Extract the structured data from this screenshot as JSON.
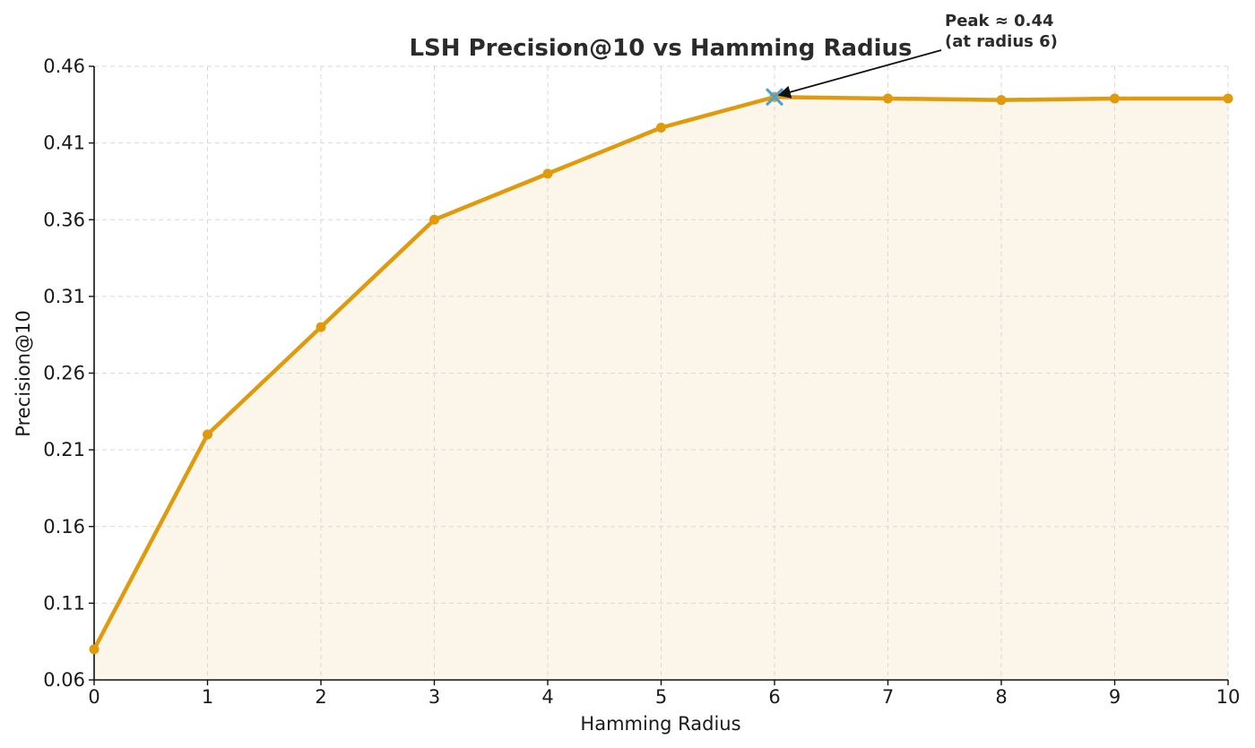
{
  "chart_data": {
    "type": "line",
    "title": "LSH Precision@10 vs Hamming Radius",
    "xlabel": "Hamming Radius",
    "ylabel": "Precision@10",
    "xlim": [
      0,
      10
    ],
    "ylim": [
      0.06,
      0.46
    ],
    "x_ticks": [
      "0",
      "1",
      "2",
      "3",
      "4",
      "5",
      "6",
      "7",
      "8",
      "9",
      "10"
    ],
    "y_ticks": [
      "0.06",
      "0.11",
      "0.16",
      "0.21",
      "0.26",
      "0.31",
      "0.36",
      "0.41",
      "0.46"
    ],
    "grid": true,
    "legend": "none",
    "colors": {
      "line": "#e09a0b",
      "fill": "#fbf5ea",
      "peak_marker": "#4aa3d4"
    },
    "series": [
      {
        "x": [
          0,
          1,
          2,
          3,
          4,
          5,
          6,
          7,
          8,
          9,
          10
        ],
        "values": [
          0.08,
          0.22,
          0.29,
          0.36,
          0.39,
          0.42,
          0.44,
          0.439,
          0.438,
          0.439,
          0.439
        ]
      }
    ],
    "peak": {
      "x": 6,
      "y": 0.44
    },
    "annotation": {
      "line1": "Peak ≈ 0.44",
      "line2": "(at radius 6)"
    }
  }
}
